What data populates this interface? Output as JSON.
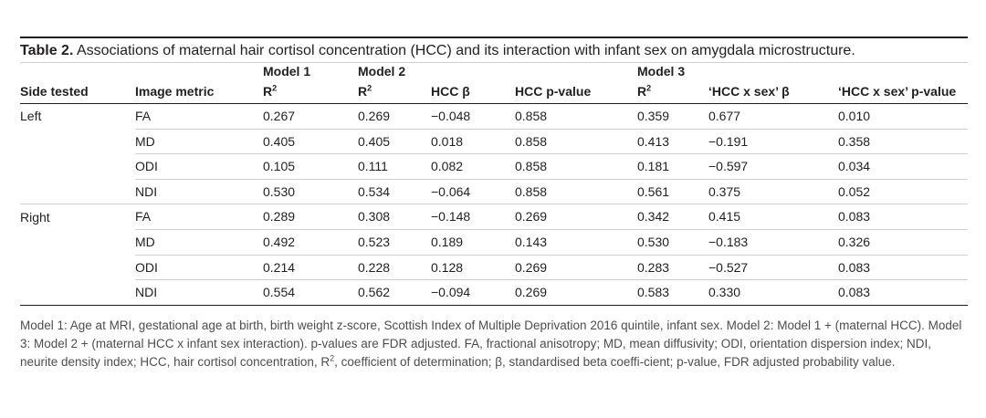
{
  "caption": {
    "label": "Table 2.",
    "text": " Associations of maternal hair cortisol concentration (HCC) and its interaction with infant sex on amygdala microstructure."
  },
  "header": {
    "model1": "Model 1",
    "model2": "Model 2",
    "model3": "Model 3",
    "side_tested": "Side tested",
    "image_metric": "Image metric",
    "r2_base": "R",
    "r2_sup": "2",
    "hcc_beta": "HCC β",
    "hcc_p": "HCC p-value",
    "int_beta": "‘HCC x sex’ β",
    "int_p": "‘HCC x sex’ p-value"
  },
  "rows": [
    {
      "side": "Left",
      "metric": "FA",
      "m1_r2": "0.267",
      "m2_r2": "0.269",
      "hcc_beta": "−0.048",
      "hcc_p": "0.858",
      "m3_r2": "0.359",
      "int_beta": "0.677",
      "int_p": "0.010"
    },
    {
      "side": "",
      "metric": "MD",
      "m1_r2": "0.405",
      "m2_r2": "0.405",
      "hcc_beta": "0.018",
      "hcc_p": "0.858",
      "m3_r2": "0.413",
      "int_beta": "−0.191",
      "int_p": "0.358"
    },
    {
      "side": "",
      "metric": "ODI",
      "m1_r2": "0.105",
      "m2_r2": "0.111",
      "hcc_beta": "0.082",
      "hcc_p": "0.858",
      "m3_r2": "0.181",
      "int_beta": "−0.597",
      "int_p": "0.034"
    },
    {
      "side": "",
      "metric": "NDI",
      "m1_r2": "0.530",
      "m2_r2": "0.534",
      "hcc_beta": "−0.064",
      "hcc_p": "0.858",
      "m3_r2": "0.561",
      "int_beta": "0.375",
      "int_p": "0.052"
    },
    {
      "side": "Right",
      "metric": "FA",
      "m1_r2": "0.289",
      "m2_r2": "0.308",
      "hcc_beta": "−0.148",
      "hcc_p": "0.269",
      "m3_r2": "0.342",
      "int_beta": "0.415",
      "int_p": "0.083"
    },
    {
      "side": "",
      "metric": "MD",
      "m1_r2": "0.492",
      "m2_r2": "0.523",
      "hcc_beta": "0.189",
      "hcc_p": "0.143",
      "m3_r2": "0.530",
      "int_beta": "−0.183",
      "int_p": "0.326"
    },
    {
      "side": "",
      "metric": "ODI",
      "m1_r2": "0.214",
      "m2_r2": "0.228",
      "hcc_beta": "0.128",
      "hcc_p": "0.269",
      "m3_r2": "0.283",
      "int_beta": "−0.527",
      "int_p": "0.083"
    },
    {
      "side": "",
      "metric": "NDI",
      "m1_r2": "0.554",
      "m2_r2": "0.562",
      "hcc_beta": "−0.094",
      "hcc_p": "0.269",
      "m3_r2": "0.583",
      "int_beta": "0.330",
      "int_p": "0.083"
    }
  ],
  "footnote": {
    "part1": "Model 1: Age at MRI, gestational age at birth, birth weight z-score, Scottish Index of Multiple Deprivation 2016 quintile, infant sex. Model 2: Model 1 + (maternal HCC). Model 3: Model 2 + (maternal HCC x infant sex interaction). p-values are FDR adjusted. FA, fractional anisotropy; MD, mean diffusivity; ODI, orientation dispersion index; NDI, neurite density index; HCC, hair cortisol concentration, R",
    "sup": "2",
    "part2": ", coefficient of determination; β, standardised beta coeffi-cient; p-value, FDR adjusted probability value."
  }
}
